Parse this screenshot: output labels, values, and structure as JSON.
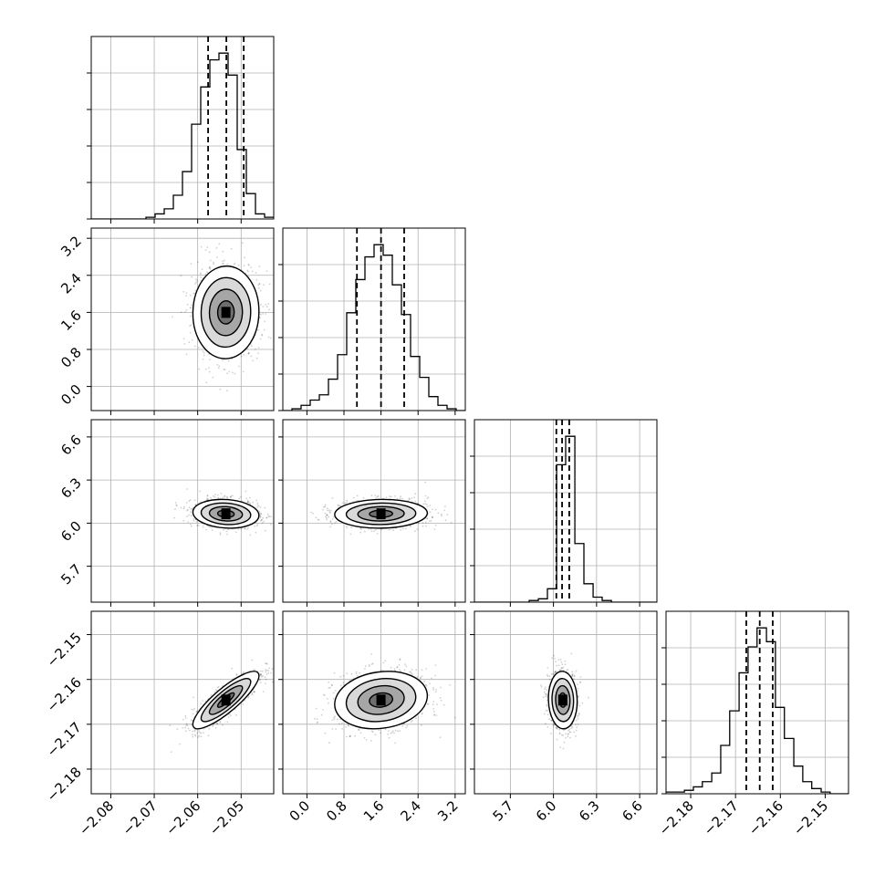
{
  "chart_data": {
    "type": "corner",
    "parameters": [
      {
        "id": "p0",
        "range": [
          -2.0845,
          -2.0425
        ],
        "ticks": [
          -2.08,
          -2.07,
          -2.06,
          -2.05
        ],
        "tick_labels": [
          "−2.08",
          "−2.07",
          "−2.06",
          "−2.05"
        ],
        "quantiles": [
          -2.0576,
          -2.0534,
          -2.0494
        ]
      },
      {
        "id": "p1",
        "range": [
          -0.52,
          3.42
        ],
        "ticks": [
          0.0,
          0.8,
          1.6,
          2.4,
          3.2
        ],
        "tick_labels": [
          "0.0",
          "0.8",
          "1.6",
          "2.4",
          "3.2"
        ],
        "quantiles": [
          1.08,
          1.6,
          2.1
        ]
      },
      {
        "id": "p2",
        "range": [
          5.45,
          6.72
        ],
        "ticks": [
          5.7,
          6.0,
          6.3,
          6.6
        ],
        "tick_labels": [
          "5.7",
          "6.0",
          "6.3",
          "6.6"
        ],
        "quantiles": [
          6.02,
          6.06,
          6.11
        ]
      },
      {
        "id": "p3",
        "range": [
          -2.1855,
          -2.1448
        ],
        "ticks": [
          -2.18,
          -2.17,
          -2.16,
          -2.15
        ],
        "tick_labels": [
          "−2.18",
          "−2.17",
          "−2.16",
          "−2.15"
        ],
        "quantiles": [
          -2.1676,
          -2.1646,
          -2.1617
        ]
      }
    ],
    "histograms": [
      {
        "param": "p0",
        "bin_edges": [
          -2.0845,
          -2.0824,
          -2.0803,
          -2.0782,
          -2.0761,
          -2.074,
          -2.0719,
          -2.0698,
          -2.0677,
          -2.0656,
          -2.0635,
          -2.0614,
          -2.0593,
          -2.0572,
          -2.0551,
          -2.053,
          -2.0509,
          -2.0488,
          -2.0467,
          -2.0446,
          -2.0425
        ],
        "counts": [
          0,
          0,
          0,
          0,
          0,
          0,
          1,
          3,
          6,
          14,
          28,
          56,
          78,
          94,
          98,
          85,
          41,
          15,
          3,
          1
        ]
      },
      {
        "param": "p1",
        "bin_edges": [
          -0.52,
          -0.323,
          -0.126,
          0.071,
          0.268,
          0.465,
          0.662,
          0.859,
          1.056,
          1.253,
          1.45,
          1.647,
          1.844,
          2.041,
          2.238,
          2.435,
          2.632,
          2.829,
          3.026,
          3.223,
          3.42
        ],
        "counts": [
          0,
          1,
          3,
          6,
          9,
          18,
          32,
          56,
          75,
          88,
          95,
          89,
          72,
          55,
          31,
          19,
          8,
          3,
          1,
          0
        ]
      },
      {
        "param": "p2",
        "bin_edges": [
          5.45,
          5.514,
          5.577,
          5.641,
          5.704,
          5.768,
          5.831,
          5.895,
          5.958,
          6.022,
          6.085,
          6.149,
          6.212,
          6.276,
          6.339,
          6.403,
          6.466,
          6.53,
          6.593,
          6.657,
          6.72
        ],
        "counts": [
          0,
          0,
          0,
          0,
          0,
          0,
          1,
          2,
          8,
          82,
          99,
          35,
          11,
          3,
          1,
          0,
          0,
          0,
          0,
          0
        ]
      },
      {
        "param": "p3",
        "bin_edges": [
          -2.1855,
          -2.1835,
          -2.1814,
          -2.1794,
          -2.1774,
          -2.1753,
          -2.1733,
          -2.1713,
          -2.1692,
          -2.1672,
          -2.1652,
          -2.1631,
          -2.1611,
          -2.1591,
          -2.157,
          -2.155,
          -2.153,
          -2.1509,
          -2.1489,
          -2.1469,
          -2.1448
        ],
        "counts": [
          1,
          1,
          2,
          4,
          7,
          12,
          28,
          48,
          70,
          85,
          96,
          88,
          50,
          32,
          16,
          7,
          3,
          1,
          0,
          0
        ]
      }
    ],
    "pairs": [
      {
        "x": "p0",
        "y": "p1",
        "mean": [
          -2.0535,
          1.6
        ],
        "sd": [
          0.0038,
          0.5
        ],
        "corr": 0.02
      },
      {
        "x": "p0",
        "y": "p2",
        "mean": [
          -2.0535,
          6.065
        ],
        "sd": [
          0.0038,
          0.05
        ],
        "corr": -0.12
      },
      {
        "x": "p1",
        "y": "p2",
        "mean": [
          1.6,
          6.065
        ],
        "sd": [
          0.5,
          0.05
        ],
        "corr": 0.05
      },
      {
        "x": "p0",
        "y": "p3",
        "mean": [
          -2.0535,
          -2.1646
        ],
        "sd": [
          0.0038,
          0.0032
        ],
        "corr": 0.85
      },
      {
        "x": "p1",
        "y": "p3",
        "mean": [
          1.6,
          -2.1646
        ],
        "sd": [
          0.5,
          0.0032
        ],
        "corr": 0.15
      },
      {
        "x": "p2",
        "y": "p3",
        "mean": [
          6.065,
          -2.1646
        ],
        "sd": [
          0.05,
          0.0032
        ],
        "corr": -0.05
      }
    ],
    "grid": true,
    "legend": "none",
    "colors": {
      "line": "#000000",
      "grid": "#b0b0b0",
      "points": "#000000"
    }
  }
}
